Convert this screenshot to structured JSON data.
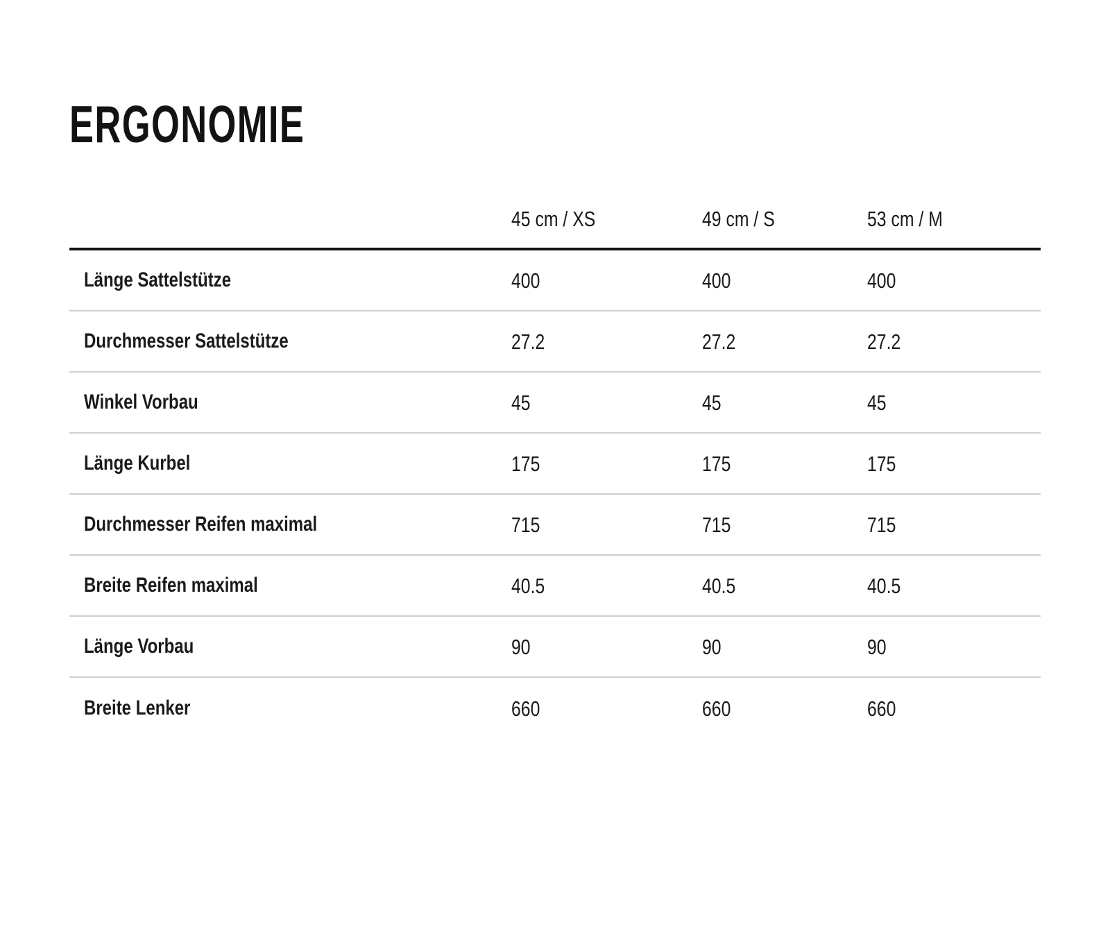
{
  "chart_data": {
    "type": "table",
    "title": "ERGONOMIE",
    "columns": [
      "45 cm / XS",
      "49 cm / S",
      "53 cm / M"
    ],
    "rows": [
      {
        "label": "Länge Sattelstütze",
        "values": [
          "400",
          "400",
          "400"
        ]
      },
      {
        "label": "Durchmesser Sattelstütze",
        "values": [
          "27.2",
          "27.2",
          "27.2"
        ]
      },
      {
        "label": "Winkel Vorbau",
        "values": [
          "45",
          "45",
          "45"
        ]
      },
      {
        "label": "Länge Kurbel",
        "values": [
          "175",
          "175",
          "175"
        ]
      },
      {
        "label": "Durchmesser Reifen maximal",
        "values": [
          "715",
          "715",
          "715"
        ]
      },
      {
        "label": "Breite Reifen maximal",
        "values": [
          "40.5",
          "40.5",
          "40.5"
        ]
      },
      {
        "label": "Länge Vorbau",
        "values": [
          "90",
          "90",
          "90"
        ]
      },
      {
        "label": "Breite Lenker",
        "values": [
          "660",
          "660",
          "660"
        ]
      }
    ],
    "layout": {
      "legend": "none",
      "grid": "horizontal-dividers-only",
      "header_rule": "thick-black-below-column-headers"
    }
  },
  "colors": {
    "background": "#ffffff",
    "text": "#1a1a1a",
    "header_rule": "#131313",
    "row_divider": "#cbd0d4"
  }
}
